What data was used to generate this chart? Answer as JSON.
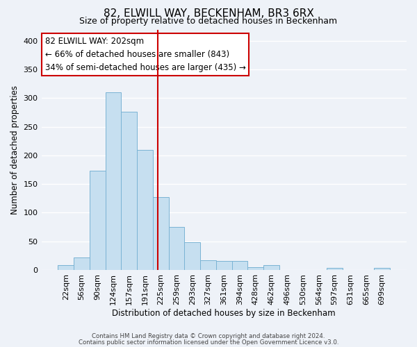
{
  "title": "82, ELWILL WAY, BECKENHAM, BR3 6RX",
  "subtitle": "Size of property relative to detached houses in Beckenham",
  "bar_labels": [
    "22sqm",
    "56sqm",
    "90sqm",
    "124sqm",
    "157sqm",
    "191sqm",
    "225sqm",
    "259sqm",
    "293sqm",
    "327sqm",
    "361sqm",
    "394sqm",
    "428sqm",
    "462sqm",
    "496sqm",
    "530sqm",
    "564sqm",
    "597sqm",
    "631sqm",
    "665sqm",
    "699sqm"
  ],
  "bar_heights": [
    8,
    22,
    173,
    310,
    276,
    210,
    127,
    75,
    48,
    17,
    16,
    16,
    5,
    9,
    0,
    0,
    0,
    3,
    0,
    0,
    3
  ],
  "bar_color": "#c6dff0",
  "bar_edge_color": "#7ab3d4",
  "ylim": [
    0,
    420
  ],
  "yticks": [
    0,
    50,
    100,
    150,
    200,
    250,
    300,
    350,
    400
  ],
  "ylabel": "Number of detached properties",
  "xlabel": "Distribution of detached houses by size in Beckenham",
  "vline_x": 5.82,
  "vline_color": "#cc0000",
  "annotation_title": "82 ELWILL WAY: 202sqm",
  "annotation_line1": "← 66% of detached houses are smaller (843)",
  "annotation_line2": "34% of semi-detached houses are larger (435) →",
  "annotation_box_color": "#ffffff",
  "annotation_box_edge": "#cc0000",
  "footer1": "Contains HM Land Registry data © Crown copyright and database right 2024.",
  "footer2": "Contains public sector information licensed under the Open Government Licence v3.0.",
  "background_color": "#eef2f8",
  "grid_color": "#ffffff"
}
